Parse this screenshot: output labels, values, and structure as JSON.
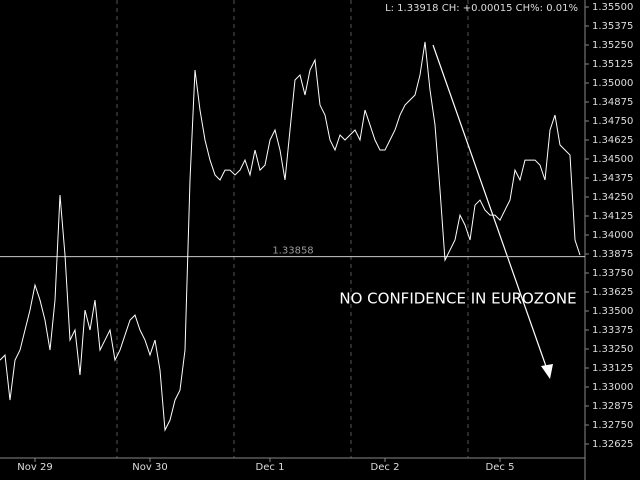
{
  "chart_data": {
    "type": "line",
    "header": "L: 1.33918 CH: +0.00015 CH%: 0.01%",
    "annotation": "NO CONFIDENCE IN EUROZONE",
    "price_line": 1.33858,
    "background": "#000000",
    "series": [
      {
        "color": "#ffffff",
        "values": [
          1.33177,
          1.3321,
          1.32914,
          1.33177,
          1.33243,
          1.33375,
          1.33506,
          1.33671,
          1.33572,
          1.3344,
          1.33243,
          1.33572,
          1.34263,
          1.33868,
          1.33309,
          1.33375,
          1.33079,
          1.33506,
          1.33375,
          1.33572,
          1.33243,
          1.33309,
          1.33375,
          1.33177,
          1.33243,
          1.33342,
          1.3344,
          1.33473,
          1.33375,
          1.33309,
          1.3321,
          1.33309,
          1.33111,
          1.32717,
          1.32782,
          1.32914,
          1.3298,
          1.33243,
          1.34362,
          1.35085,
          1.34822,
          1.34625,
          1.34493,
          1.34395,
          1.34362,
          1.34427,
          1.34427,
          1.34395,
          1.34427,
          1.34493,
          1.34395,
          1.34559,
          1.34427,
          1.3446,
          1.34625,
          1.34691,
          1.34559,
          1.34362,
          1.34691,
          1.3502,
          1.35053,
          1.34921,
          1.35085,
          1.35151,
          1.34855,
          1.34789,
          1.34625,
          1.34559,
          1.34658,
          1.34625,
          1.34658,
          1.34691,
          1.34625,
          1.34822,
          1.34724,
          1.34625,
          1.34559,
          1.34559,
          1.34625,
          1.34691,
          1.34789,
          1.34855,
          1.34888,
          1.34921,
          1.35053,
          1.3527,
          1.34954,
          1.34724,
          1.34296,
          1.33835,
          1.33901,
          1.33967,
          1.34131,
          1.34066,
          1.33967,
          1.34197,
          1.3423,
          1.34164,
          1.34131,
          1.34131,
          1.34098,
          1.34164,
          1.3423,
          1.34427,
          1.34362,
          1.34493,
          1.34493,
          1.34493,
          1.3446,
          1.34362,
          1.34691,
          1.34789,
          1.34592,
          1.34559,
          1.34526,
          1.33967,
          1.33868
        ]
      }
    ],
    "xlim": [
      0,
      116
    ],
    "xticks": [
      {
        "value": 7,
        "label": "Nov 29"
      },
      {
        "value": 30,
        "label": "Nov 30"
      },
      {
        "value": 54,
        "label": "Dec 1"
      },
      {
        "value": 77,
        "label": "Dec 2"
      },
      {
        "value": 100,
        "label": "Dec 5"
      }
    ],
    "ylim": [
      1.32533,
      1.355
    ],
    "yticks": [
      {
        "value": 1.355,
        "label": "1.35500"
      },
      1.35375,
      {
        "value": 1.3525,
        "label": "1.35250"
      },
      1.35125,
      {
        "value": 1.35,
        "label": "1.35000"
      },
      1.34875,
      {
        "value": 1.3475,
        "label": "1.34750"
      },
      1.34625,
      {
        "value": 1.345,
        "label": "1.34500"
      },
      1.34375,
      {
        "value": 1.3425,
        "label": "1.34250"
      },
      1.34125,
      {
        "value": 1.34,
        "label": "1.34000"
      },
      1.33875,
      {
        "value": 1.3375,
        "label": "1.33750"
      },
      1.33625,
      {
        "value": 1.335,
        "label": "1.33500"
      },
      1.33375,
      {
        "value": 1.3325,
        "label": "1.33250"
      },
      1.33125,
      {
        "value": 1.33,
        "label": "1.33000"
      },
      1.32875,
      {
        "value": 1.3275,
        "label": "1.32750"
      },
      1.32625
    ]
  }
}
